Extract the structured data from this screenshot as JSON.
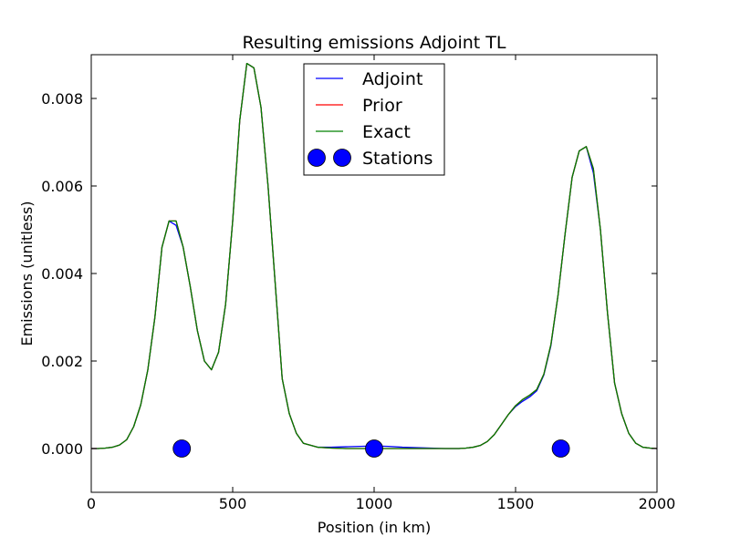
{
  "chart_data": {
    "type": "line",
    "title": "Resulting emissions Adjoint TL",
    "xlabel": "Position (in km)",
    "ylabel": "Emissions (unitless)",
    "xlim": [
      0,
      2000
    ],
    "ylim": [
      -0.001,
      0.009
    ],
    "xticks": [
      0,
      500,
      1000,
      1500,
      2000
    ],
    "xtick_labels": [
      "0",
      "500",
      "1000",
      "1500",
      "2000"
    ],
    "yticks": [
      0.0,
      0.002,
      0.004,
      0.006,
      0.008
    ],
    "ytick_labels": [
      "0.000",
      "0.002",
      "0.004",
      "0.006",
      "0.008"
    ],
    "grid": false,
    "legend": {
      "placement": "upper center",
      "entries": [
        "Adjoint",
        "Prior",
        "Exact",
        "Stations"
      ]
    },
    "x": [
      0,
      25,
      50,
      75,
      100,
      125,
      150,
      175,
      200,
      225,
      250,
      275,
      300,
      325,
      350,
      375,
      400,
      425,
      450,
      475,
      500,
      525,
      550,
      575,
      600,
      625,
      650,
      675,
      700,
      725,
      750,
      800,
      850,
      900,
      950,
      1000,
      1050,
      1100,
      1150,
      1200,
      1250,
      1300,
      1325,
      1350,
      1375,
      1400,
      1425,
      1450,
      1475,
      1500,
      1525,
      1550,
      1575,
      1600,
      1625,
      1650,
      1675,
      1700,
      1725,
      1750,
      1775,
      1800,
      1825,
      1850,
      1875,
      1900,
      1925,
      1950,
      1975,
      2000
    ],
    "series": [
      {
        "name": "Adjoint",
        "color": "#0000ff",
        "values": [
          0.0,
          0.0,
          1e-05,
          3e-05,
          8e-05,
          0.0002,
          0.0005,
          0.001,
          0.0018,
          0.003,
          0.0046,
          0.0052,
          0.0051,
          0.0046,
          0.0037,
          0.0027,
          0.002,
          0.0018,
          0.0022,
          0.0033,
          0.0052,
          0.0075,
          0.0088,
          0.0087,
          0.0078,
          0.006,
          0.0038,
          0.0016,
          0.0008,
          0.00035,
          0.00012,
          3e-05,
          3e-05,
          4e-05,
          5e-05,
          6e-05,
          5e-05,
          3e-05,
          2e-05,
          1e-05,
          0.0,
          0.0,
          1e-05,
          3e-05,
          7e-05,
          0.00016,
          0.00032,
          0.00055,
          0.00078,
          0.00096,
          0.00108,
          0.00118,
          0.00132,
          0.00168,
          0.00235,
          0.0035,
          0.0049,
          0.0062,
          0.0068,
          0.0069,
          0.0063,
          0.005,
          0.0031,
          0.0015,
          0.0008,
          0.00035,
          0.00012,
          3e-05,
          1e-05,
          0.0
        ]
      },
      {
        "name": "Prior",
        "color": "#ff0000",
        "values": [
          0.0,
          0.0,
          1e-05,
          3e-05,
          8e-05,
          0.0002,
          0.0005,
          0.001,
          0.0018,
          0.003,
          0.0046,
          0.0052,
          0.0052,
          0.0046,
          0.0037,
          0.0027,
          0.002,
          0.0018,
          0.0022,
          0.0033,
          0.0052,
          0.0075,
          0.0088,
          0.0087,
          0.0078,
          0.006,
          0.0038,
          0.0016,
          0.0008,
          0.00035,
          0.00012,
          3e-05,
          1e-05,
          0.0,
          0.0,
          0.0,
          0.0,
          0.0,
          0.0,
          0.0,
          0.0,
          0.0,
          1e-05,
          3e-05,
          7e-05,
          0.00016,
          0.00032,
          0.00055,
          0.00078,
          0.00098,
          0.00112,
          0.00122,
          0.00135,
          0.0017,
          0.00238,
          0.0035,
          0.0049,
          0.0062,
          0.0068,
          0.0069,
          0.0064,
          0.005,
          0.0031,
          0.0015,
          0.0008,
          0.00035,
          0.00012,
          3e-05,
          1e-05,
          0.0
        ]
      },
      {
        "name": "Exact",
        "color": "#008000",
        "values": [
          0.0,
          0.0,
          1e-05,
          3e-05,
          8e-05,
          0.0002,
          0.0005,
          0.001,
          0.0018,
          0.003,
          0.0046,
          0.0052,
          0.0052,
          0.0046,
          0.0037,
          0.0027,
          0.002,
          0.0018,
          0.0022,
          0.0033,
          0.0052,
          0.0075,
          0.0088,
          0.0087,
          0.0078,
          0.006,
          0.0038,
          0.0016,
          0.0008,
          0.00035,
          0.00012,
          3e-05,
          1e-05,
          0.0,
          0.0,
          0.0,
          0.0,
          0.0,
          0.0,
          0.0,
          0.0,
          0.0,
          1e-05,
          3e-05,
          7e-05,
          0.00016,
          0.00032,
          0.00055,
          0.00078,
          0.00098,
          0.00112,
          0.00122,
          0.00135,
          0.0017,
          0.00238,
          0.0035,
          0.0049,
          0.0062,
          0.0068,
          0.0069,
          0.0064,
          0.005,
          0.0031,
          0.0015,
          0.0008,
          0.00035,
          0.00012,
          3e-05,
          1e-05,
          0.0
        ]
      }
    ],
    "stations": {
      "name": "Stations",
      "color": "#0000ff",
      "x": [
        320,
        1000,
        1660
      ],
      "y": [
        0.0,
        0.0,
        0.0
      ]
    }
  }
}
